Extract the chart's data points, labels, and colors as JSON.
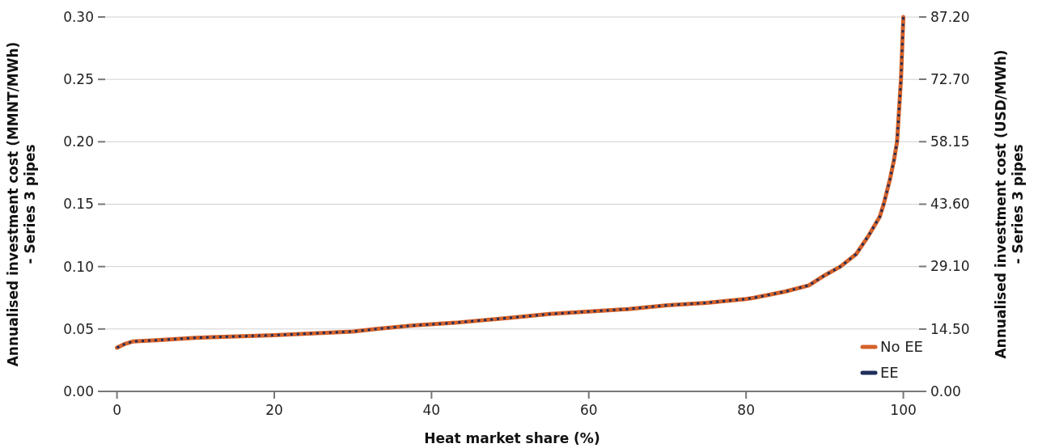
{
  "chart_data": {
    "type": "line",
    "xlabel": "Heat market share (%)",
    "ylabel": "Annualised investment cost (MMNT/MWh)\n- Series 3 pipes",
    "y2label": "Annualised investment cost (USD/MWh)\n- Series 3 pipes",
    "x": [
      0,
      1,
      2,
      5,
      10,
      20,
      30,
      33,
      38,
      43,
      50,
      55,
      60,
      65,
      70,
      75,
      80,
      81,
      85,
      88,
      90,
      92,
      94,
      95.6,
      97,
      97.5,
      98.3,
      98.8,
      99.2,
      99.7,
      100
    ],
    "series": [
      {
        "name": "No EE",
        "color": "#d4622a",
        "line_style": "solid",
        "values": [
          0.035,
          0.038,
          0.04,
          0.041,
          0.043,
          0.045,
          0.048,
          0.05,
          0.053,
          0.055,
          0.059,
          0.062,
          0.064,
          0.066,
          0.069,
          0.071,
          0.074,
          0.075,
          0.08,
          0.085,
          0.093,
          0.1,
          0.11,
          0.125,
          0.14,
          0.15,
          0.17,
          0.185,
          0.2,
          0.25,
          0.3
        ]
      },
      {
        "name": "EE",
        "color": "#1f2d5a",
        "line_style": "dotted",
        "values": [
          0.035,
          0.038,
          0.04,
          0.041,
          0.043,
          0.045,
          0.048,
          0.05,
          0.053,
          0.055,
          0.059,
          0.062,
          0.064,
          0.066,
          0.069,
          0.071,
          0.074,
          0.075,
          0.08,
          0.085,
          0.093,
          0.1,
          0.11,
          0.125,
          0.14,
          0.15,
          0.17,
          0.185,
          0.2,
          0.25,
          0.3
        ]
      }
    ],
    "xlim": [
      -1.5,
      102
    ],
    "xticks": [
      0,
      20,
      40,
      60,
      80,
      100
    ],
    "ylim": [
      0,
      0.3
    ],
    "yticks": [
      {
        "value": 0,
        "label": "0.00"
      },
      {
        "value": 0.05,
        "label": "0.05"
      },
      {
        "value": 0.1,
        "label": "0.10"
      },
      {
        "value": 0.15,
        "label": "0.15"
      },
      {
        "value": 0.2,
        "label": "0.20"
      },
      {
        "value": 0.25,
        "label": "0.25"
      },
      {
        "value": 0.3,
        "label": "0.30"
      }
    ],
    "y2lim": [
      0,
      87.2
    ],
    "y2ticks": [
      {
        "value": 0,
        "label": "0.00"
      },
      {
        "value": 14.5,
        "label": "14.50"
      },
      {
        "value": 29.1,
        "label": "29.10"
      },
      {
        "value": 43.6,
        "label": "43.60"
      },
      {
        "value": 58.15,
        "label": "58.15"
      },
      {
        "value": 72.7,
        "label": "72.70"
      },
      {
        "value": 87.2,
        "label": "87.20"
      }
    ],
    "grid": "y",
    "legend": "bottom right",
    "marker": "none"
  }
}
